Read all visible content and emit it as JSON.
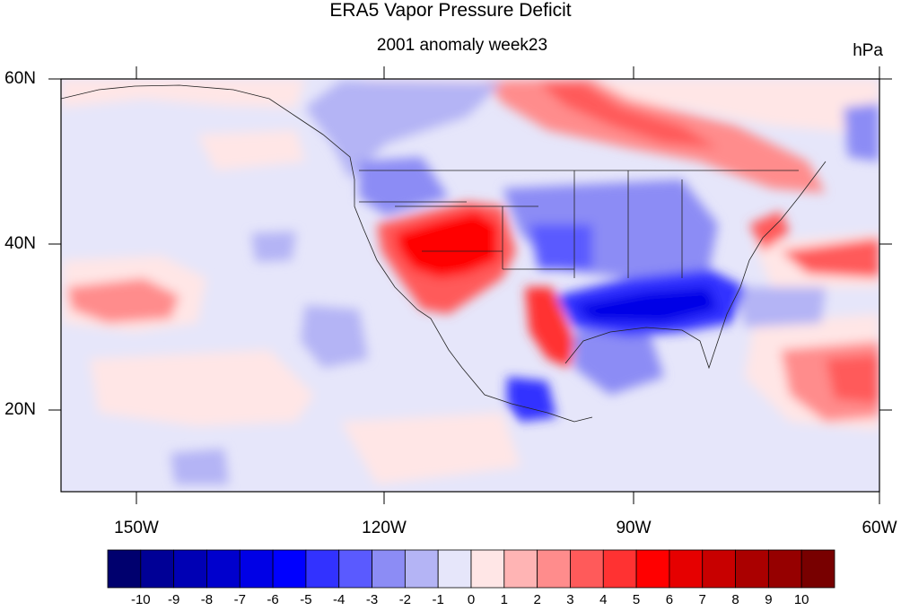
{
  "title": "ERA5 Vapor Pressure Deficit",
  "subtitle": "2001 anomaly week23",
  "units": "hPa",
  "map": {
    "lon_range": [
      -160,
      -60
    ],
    "lat_range": [
      10,
      60
    ],
    "lat_ticks": [
      "60N",
      "40N",
      "20N"
    ],
    "lon_ticks": [
      "150W",
      "120W",
      "90W",
      "60W"
    ]
  },
  "colorbar": {
    "labels": [
      "-10",
      "-9",
      "-8",
      "-7",
      "-6",
      "-5",
      "-4",
      "-3",
      "-2",
      "-1",
      "0",
      "1",
      "2",
      "3",
      "4",
      "5",
      "6",
      "7",
      "8",
      "9",
      "10"
    ],
    "colors": [
      "#00006e",
      "#000096",
      "#0000b4",
      "#0000cd",
      "#0000e6",
      "#0000ff",
      "#3232ff",
      "#5a5aff",
      "#8c8cf5",
      "#b4b4f5",
      "#e6e6fa",
      "#ffe6e6",
      "#ffb4b4",
      "#ff8c8c",
      "#ff5a5a",
      "#ff3232",
      "#ff0000",
      "#e60000",
      "#c80000",
      "#aa0000",
      "#960000",
      "#780000"
    ]
  }
}
